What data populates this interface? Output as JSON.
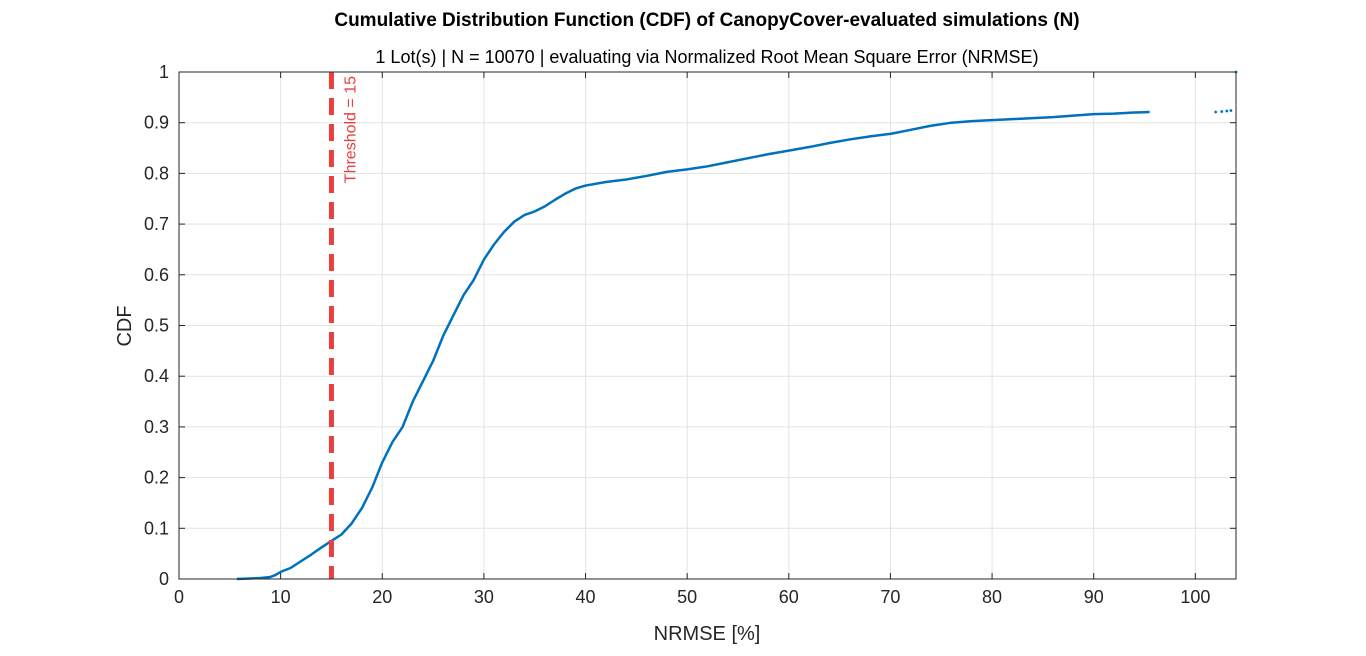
{
  "chart_data": {
    "type": "line",
    "title": "Cumulative Distribution Function (CDF) of CanopyCover-evaluated simulations (N)",
    "subtitle": "1 Lot(s) | N = 10070 | evaluating via Normalized Root Mean Square Error (NRMSE)",
    "xlabel": "NRMSE [%]",
    "ylabel": "CDF",
    "xlim": [
      0,
      104
    ],
    "ylim": [
      0,
      1
    ],
    "x_ticks": [
      "0",
      "10",
      "20",
      "30",
      "40",
      "50",
      "60",
      "70",
      "80",
      "90",
      "100"
    ],
    "y_ticks": [
      "0",
      "0.1",
      "0.2",
      "0.3",
      "0.4",
      "0.5",
      "0.6",
      "0.7",
      "0.8",
      "0.9",
      "1"
    ],
    "grid": true,
    "threshold": {
      "x": 15,
      "label": "Threshold = 15",
      "color": "#e84040"
    },
    "series": [
      {
        "color": "#0072bd",
        "points": [
          [
            5.7,
            0.0
          ],
          [
            7.0,
            0.001
          ],
          [
            8.0,
            0.002
          ],
          [
            9.0,
            0.004
          ],
          [
            9.5,
            0.008
          ],
          [
            10.0,
            0.014
          ],
          [
            11.0,
            0.022
          ],
          [
            12.0,
            0.035
          ],
          [
            13.0,
            0.048
          ],
          [
            14.0,
            0.062
          ],
          [
            15.0,
            0.075
          ],
          [
            16.0,
            0.088
          ],
          [
            17.0,
            0.11
          ],
          [
            18.0,
            0.14
          ],
          [
            19.0,
            0.18
          ],
          [
            20.0,
            0.23
          ],
          [
            21.0,
            0.27
          ],
          [
            22.0,
            0.3
          ],
          [
            23.0,
            0.35
          ],
          [
            24.0,
            0.39
          ],
          [
            25.0,
            0.43
          ],
          [
            26.0,
            0.48
          ],
          [
            27.0,
            0.52
          ],
          [
            28.0,
            0.56
          ],
          [
            29.0,
            0.59
          ],
          [
            30.0,
            0.63
          ],
          [
            31.0,
            0.66
          ],
          [
            32.0,
            0.685
          ],
          [
            33.0,
            0.705
          ],
          [
            34.0,
            0.718
          ],
          [
            35.0,
            0.725
          ],
          [
            36.0,
            0.735
          ],
          [
            37.0,
            0.748
          ],
          [
            38.0,
            0.76
          ],
          [
            39.0,
            0.77
          ],
          [
            40.0,
            0.776
          ],
          [
            42.0,
            0.783
          ],
          [
            44.0,
            0.788
          ],
          [
            46.0,
            0.795
          ],
          [
            48.0,
            0.803
          ],
          [
            50.0,
            0.808
          ],
          [
            52.0,
            0.814
          ],
          [
            54.0,
            0.822
          ],
          [
            56.0,
            0.83
          ],
          [
            58.0,
            0.838
          ],
          [
            60.0,
            0.845
          ],
          [
            62.0,
            0.852
          ],
          [
            64.0,
            0.86
          ],
          [
            66.0,
            0.867
          ],
          [
            68.0,
            0.873
          ],
          [
            70.0,
            0.878
          ],
          [
            72.0,
            0.886
          ],
          [
            74.0,
            0.894
          ],
          [
            76.0,
            0.9
          ],
          [
            78.0,
            0.903
          ],
          [
            80.0,
            0.905
          ],
          [
            82.0,
            0.907
          ],
          [
            84.0,
            0.909
          ],
          [
            86.0,
            0.911
          ],
          [
            88.0,
            0.914
          ],
          [
            90.0,
            0.917
          ],
          [
            92.0,
            0.918
          ],
          [
            94.0,
            0.92
          ],
          [
            95.5,
            0.921
          ]
        ],
        "sparse_points": [
          [
            102.0,
            0.921
          ],
          [
            102.6,
            0.922
          ],
          [
            103.1,
            0.923
          ],
          [
            103.5,
            0.924
          ],
          [
            104.0,
            1.0
          ]
        ]
      }
    ]
  }
}
